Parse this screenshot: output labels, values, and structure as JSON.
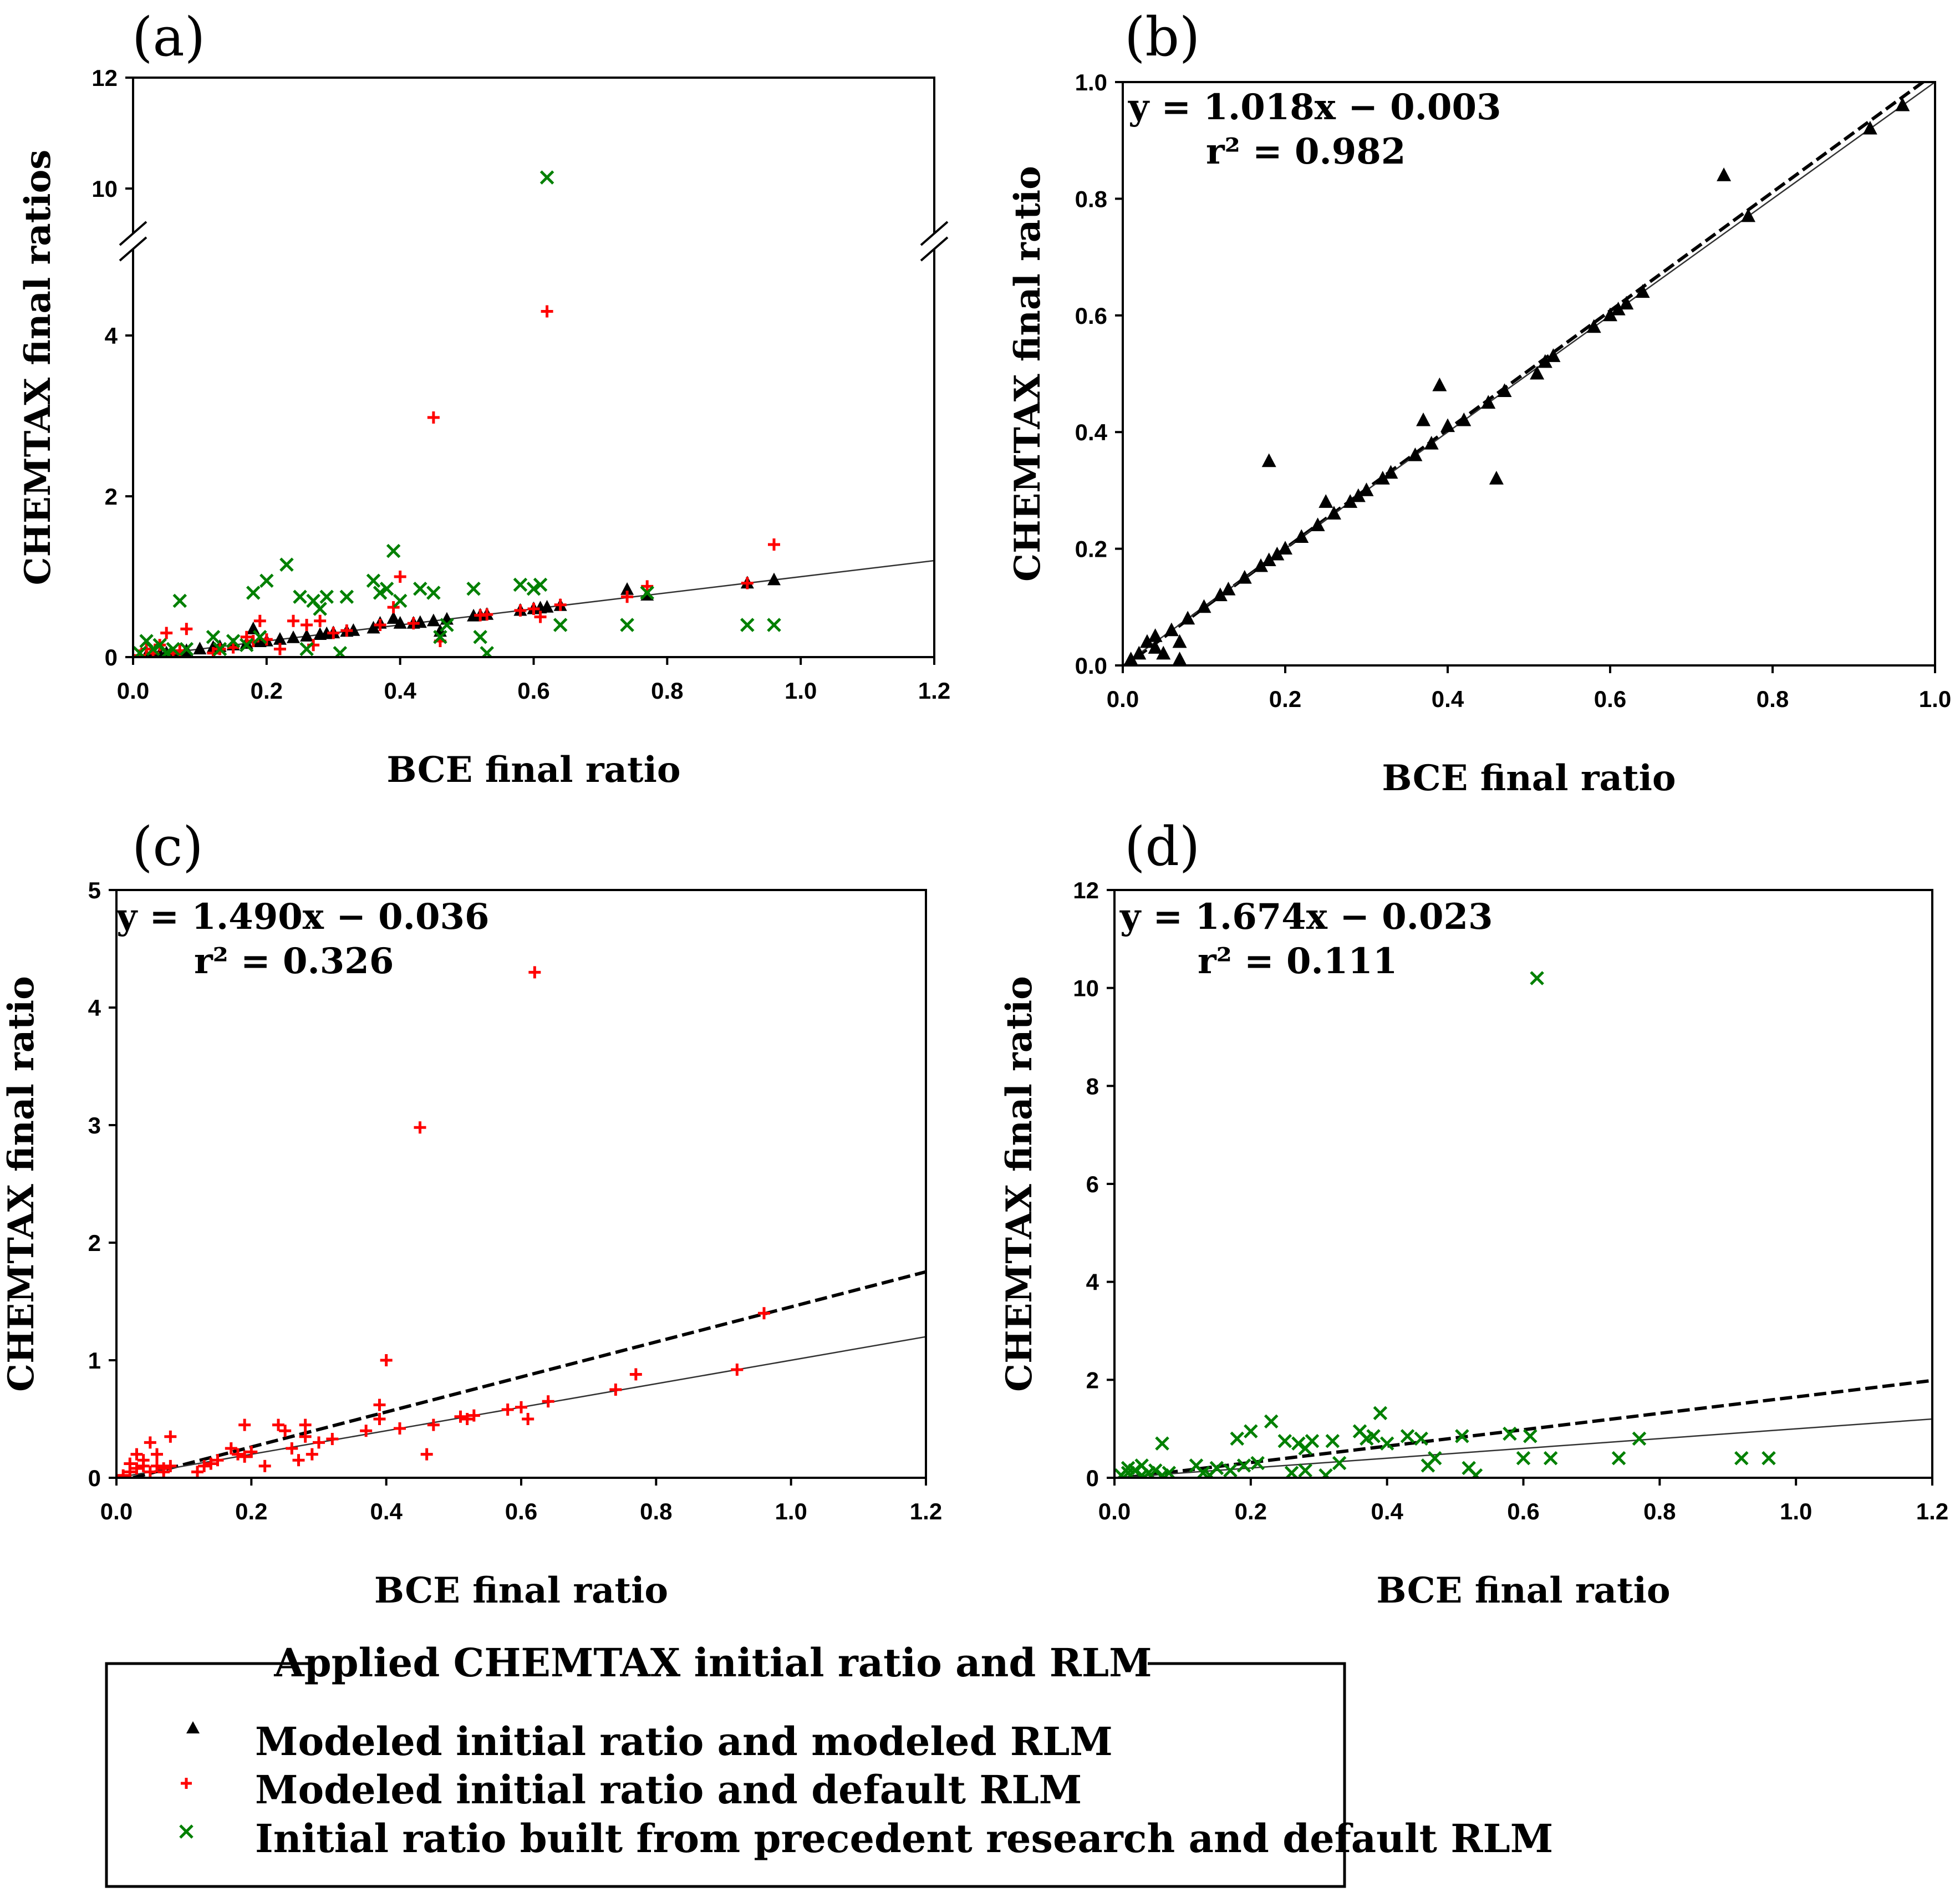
{
  "legend": {
    "title": "Applied CHEMTAX initial ratio and RLM",
    "items": [
      {
        "marker": "triangle",
        "color": "#000000",
        "label": "Modeled initial ratio and modeled RLM"
      },
      {
        "marker": "plus",
        "color": "#ff0000",
        "label": "Modeled initial ratio and default RLM"
      },
      {
        "marker": "x",
        "color": "#008000",
        "label": "Initial ratio built from precedent research and default RLM"
      }
    ]
  },
  "colors": {
    "modeled_modeled": "#000000",
    "modeled_default": "#ff0000",
    "precedent_default": "#008000"
  },
  "chart_data": [
    {
      "panel": "(a)",
      "type": "scatter",
      "xlabel": "BCE final ratio",
      "ylabel": "CHEMTAX final ratios",
      "xlim": [
        0,
        1.2
      ],
      "ylim": [
        0,
        12
      ],
      "axis_break": "between 5 and 9.5",
      "xticks": [
        "0.0",
        "0.2",
        "0.4",
        "0.6",
        "0.8",
        "1.0",
        "1.2"
      ],
      "yticks": [
        "0",
        "2",
        "4",
        "10",
        "12"
      ],
      "lines": [
        {
          "style": "solid",
          "slope": 1.0,
          "intercept": 0.0
        }
      ],
      "series": [
        {
          "name": "Modeled initial ratio and modeled RLM",
          "marker": "triangle",
          "x": [
            0.02,
            0.03,
            0.04,
            0.05,
            0.06,
            0.07,
            0.08,
            0.1,
            0.12,
            0.13,
            0.15,
            0.17,
            0.18,
            0.19,
            0.2,
            0.22,
            0.24,
            0.26,
            0.28,
            0.29,
            0.3,
            0.32,
            0.33,
            0.36,
            0.37,
            0.39,
            0.4,
            0.42,
            0.43,
            0.45,
            0.46,
            0.47,
            0.51,
            0.52,
            0.53,
            0.58,
            0.6,
            0.61,
            0.62,
            0.64,
            0.74,
            0.77,
            0.92,
            0.96
          ],
          "y": [
            0.02,
            0.03,
            0.04,
            0.05,
            0.04,
            0.02,
            0.08,
            0.1,
            0.12,
            0.13,
            0.15,
            0.17,
            0.35,
            0.19,
            0.2,
            0.22,
            0.24,
            0.26,
            0.28,
            0.29,
            0.3,
            0.32,
            0.33,
            0.36,
            0.42,
            0.48,
            0.42,
            0.42,
            0.43,
            0.45,
            0.32,
            0.47,
            0.51,
            0.52,
            0.53,
            0.58,
            0.6,
            0.61,
            0.62,
            0.64,
            0.84,
            0.77,
            0.92,
            0.96
          ]
        },
        {
          "name": "Modeled initial ratio and default RLM",
          "marker": "plus",
          "x": [
            0.01,
            0.02,
            0.03,
            0.04,
            0.05,
            0.06,
            0.07,
            0.08,
            0.12,
            0.13,
            0.15,
            0.17,
            0.18,
            0.19,
            0.2,
            0.22,
            0.24,
            0.26,
            0.27,
            0.28,
            0.3,
            0.32,
            0.37,
            0.39,
            0.4,
            0.42,
            0.45,
            0.46,
            0.52,
            0.53,
            0.58,
            0.6,
            0.61,
            0.62,
            0.64,
            0.74,
            0.77,
            0.92,
            0.96
          ],
          "y": [
            0.02,
            0.1,
            0.05,
            0.15,
            0.3,
            0.05,
            0.08,
            0.35,
            0.05,
            0.1,
            0.12,
            0.25,
            0.2,
            0.45,
            0.22,
            0.1,
            0.45,
            0.4,
            0.15,
            0.45,
            0.3,
            0.33,
            0.4,
            0.62,
            1.0,
            0.42,
            2.98,
            0.2,
            0.52,
            0.53,
            0.58,
            0.6,
            0.5,
            4.3,
            0.65,
            0.75,
            0.88,
            0.92,
            1.4
          ]
        },
        {
          "name": "Initial ratio built from precedent research and default RLM",
          "marker": "x",
          "x": [
            0.01,
            0.02,
            0.03,
            0.04,
            0.05,
            0.06,
            0.07,
            0.08,
            0.12,
            0.13,
            0.15,
            0.17,
            0.18,
            0.19,
            0.2,
            0.23,
            0.25,
            0.26,
            0.27,
            0.28,
            0.29,
            0.31,
            0.32,
            0.36,
            0.37,
            0.38,
            0.39,
            0.4,
            0.43,
            0.45,
            0.46,
            0.47,
            0.51,
            0.52,
            0.53,
            0.58,
            0.6,
            0.61,
            0.62,
            0.64,
            0.74,
            0.77,
            0.92,
            0.96
          ],
          "y": [
            0.05,
            0.2,
            0.1,
            0.15,
            0.05,
            0.1,
            0.7,
            0.1,
            0.25,
            0.1,
            0.2,
            0.15,
            0.8,
            0.25,
            0.95,
            1.15,
            0.75,
            0.1,
            0.7,
            0.6,
            0.75,
            0.05,
            0.75,
            0.95,
            0.8,
            0.85,
            1.32,
            0.7,
            0.85,
            0.8,
            0.25,
            0.4,
            0.85,
            0.25,
            0.05,
            0.9,
            0.85,
            0.9,
            10.2,
            0.4,
            0.4,
            0.8,
            0.4,
            0.4
          ]
        }
      ]
    },
    {
      "panel": "(b)",
      "type": "scatter",
      "xlabel": "BCE final ratio",
      "ylabel": "CHEMTAX final ratio",
      "xlim": [
        0,
        1.0
      ],
      "ylim": [
        0,
        1.0
      ],
      "xticks": [
        "0.0",
        "0.2",
        "0.4",
        "0.6",
        "0.8",
        "1.0"
      ],
      "yticks": [
        "0.0",
        "0.2",
        "0.4",
        "0.6",
        "0.8",
        "1.0"
      ],
      "equation": "y = 1.018x − 0.003",
      "r2": "r² = 0.982",
      "lines": [
        {
          "style": "dashed",
          "slope": 1.018,
          "intercept": -0.003
        },
        {
          "style": "solid",
          "slope": 1.0,
          "intercept": 0.0
        }
      ],
      "series": [
        {
          "name": "Modeled initial ratio and modeled RLM",
          "marker": "triangle",
          "x": [
            0.01,
            0.02,
            0.03,
            0.04,
            0.04,
            0.05,
            0.06,
            0.07,
            0.07,
            0.08,
            0.1,
            0.12,
            0.13,
            0.15,
            0.17,
            0.18,
            0.18,
            0.19,
            0.2,
            0.22,
            0.24,
            0.25,
            0.26,
            0.28,
            0.29,
            0.3,
            0.32,
            0.33,
            0.36,
            0.37,
            0.38,
            0.39,
            0.4,
            0.42,
            0.45,
            0.46,
            0.47,
            0.51,
            0.52,
            0.53,
            0.58,
            0.6,
            0.61,
            0.62,
            0.64,
            0.74,
            0.77,
            0.92,
            0.96
          ],
          "y": [
            0.01,
            0.02,
            0.04,
            0.03,
            0.05,
            0.02,
            0.06,
            0.01,
            0.04,
            0.08,
            0.1,
            0.12,
            0.13,
            0.15,
            0.17,
            0.35,
            0.18,
            0.19,
            0.2,
            0.22,
            0.24,
            0.28,
            0.26,
            0.28,
            0.29,
            0.3,
            0.32,
            0.33,
            0.36,
            0.42,
            0.38,
            0.48,
            0.41,
            0.42,
            0.45,
            0.32,
            0.47,
            0.5,
            0.52,
            0.53,
            0.58,
            0.6,
            0.61,
            0.62,
            0.64,
            0.84,
            0.77,
            0.92,
            0.96
          ]
        }
      ]
    },
    {
      "panel": "(c)",
      "type": "scatter",
      "xlabel": "BCE final ratio",
      "ylabel": "CHEMTAX final ratio",
      "xlim": [
        0,
        1.2
      ],
      "ylim": [
        0,
        5
      ],
      "xticks": [
        "0.0",
        "0.2",
        "0.4",
        "0.6",
        "0.8",
        "1.0",
        "1.2"
      ],
      "yticks": [
        "0",
        "1",
        "2",
        "3",
        "4",
        "5"
      ],
      "equation": "y = 1.490x − 0.036",
      "r2": "r² = 0.326",
      "lines": [
        {
          "style": "dashed",
          "slope": 1.49,
          "intercept": -0.036
        },
        {
          "style": "solid",
          "slope": 1.0,
          "intercept": 0.0
        }
      ],
      "series": [
        {
          "name": "Modeled initial ratio and default RLM",
          "marker": "plus",
          "x": [
            0.01,
            0.02,
            0.02,
            0.03,
            0.03,
            0.04,
            0.04,
            0.05,
            0.05,
            0.06,
            0.06,
            0.07,
            0.07,
            0.08,
            0.08,
            0.12,
            0.13,
            0.14,
            0.15,
            0.17,
            0.18,
            0.19,
            0.19,
            0.2,
            0.22,
            0.24,
            0.25,
            0.26,
            0.27,
            0.28,
            0.28,
            0.29,
            0.3,
            0.32,
            0.37,
            0.39,
            0.39,
            0.4,
            0.42,
            0.45,
            0.46,
            0.47,
            0.51,
            0.52,
            0.53,
            0.58,
            0.6,
            0.61,
            0.62,
            0.64,
            0.74,
            0.77,
            0.92,
            0.96
          ],
          "y": [
            0.02,
            0.05,
            0.12,
            0.08,
            0.2,
            0.1,
            0.15,
            0.05,
            0.3,
            0.1,
            0.2,
            0.05,
            0.08,
            0.35,
            0.1,
            0.05,
            0.1,
            0.12,
            0.15,
            0.25,
            0.2,
            0.45,
            0.18,
            0.22,
            0.1,
            0.45,
            0.4,
            0.25,
            0.15,
            0.45,
            0.35,
            0.2,
            0.3,
            0.33,
            0.4,
            0.62,
            0.5,
            1.0,
            0.42,
            2.98,
            0.2,
            0.45,
            0.52,
            0.5,
            0.53,
            0.58,
            0.6,
            0.5,
            4.3,
            0.65,
            0.75,
            0.88,
            0.92,
            1.4
          ]
        }
      ]
    },
    {
      "panel": "(d)",
      "type": "scatter",
      "xlabel": "BCE final ratio",
      "ylabel": "CHEMTAX final ratio",
      "xlim": [
        0,
        1.2
      ],
      "ylim": [
        0,
        12
      ],
      "xticks": [
        "0.0",
        "0.2",
        "0.4",
        "0.6",
        "0.8",
        "1.0",
        "1.2"
      ],
      "yticks": [
        "0",
        "2",
        "4",
        "6",
        "8",
        "10",
        "12"
      ],
      "equation": "y = 1.674x − 0.023",
      "r2": "r² = 0.111",
      "lines": [
        {
          "style": "dashed",
          "slope": 1.674,
          "intercept": -0.023
        },
        {
          "style": "solid",
          "slope": 1.0,
          "intercept": 0.0
        }
      ],
      "series": [
        {
          "name": "Initial ratio built from precedent research and default RLM",
          "marker": "x",
          "x": [
            0.01,
            0.02,
            0.02,
            0.03,
            0.04,
            0.04,
            0.05,
            0.06,
            0.07,
            0.07,
            0.08,
            0.12,
            0.13,
            0.14,
            0.15,
            0.17,
            0.18,
            0.19,
            0.2,
            0.21,
            0.23,
            0.25,
            0.26,
            0.27,
            0.28,
            0.28,
            0.29,
            0.31,
            0.32,
            0.33,
            0.36,
            0.37,
            0.38,
            0.39,
            0.4,
            0.43,
            0.45,
            0.46,
            0.47,
            0.51,
            0.52,
            0.53,
            0.58,
            0.6,
            0.61,
            0.62,
            0.64,
            0.74,
            0.77,
            0.92,
            0.96
          ],
          "y": [
            0.05,
            0.2,
            0.1,
            0.15,
            0.05,
            0.25,
            0.1,
            0.15,
            0.7,
            0.05,
            0.1,
            0.25,
            0.1,
            0.05,
            0.2,
            0.15,
            0.8,
            0.25,
            0.95,
            0.3,
            1.15,
            0.75,
            0.1,
            0.7,
            0.6,
            0.15,
            0.75,
            0.05,
            0.75,
            0.3,
            0.95,
            0.8,
            0.85,
            1.32,
            0.7,
            0.85,
            0.8,
            0.25,
            0.4,
            0.85,
            0.2,
            0.05,
            0.9,
            0.4,
            0.85,
            10.2,
            0.4,
            0.4,
            0.8,
            0.4,
            0.4
          ]
        }
      ]
    }
  ]
}
